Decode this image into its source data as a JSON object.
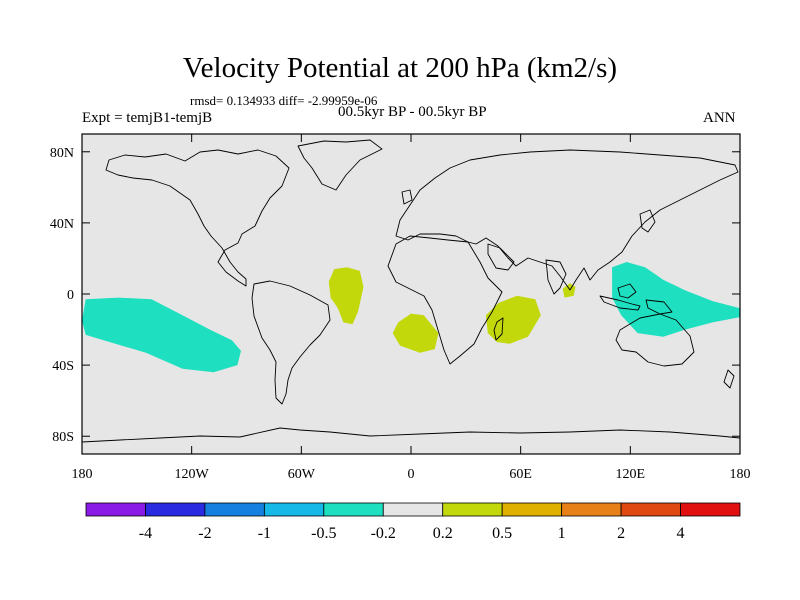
{
  "chart_data": {
    "type": "map-contour",
    "title": "Velocity Potential at 200 hPa (km2/s)",
    "stats": "rmsd= 0.134933 diff= -2.99959e-06",
    "experiment": "Expt = temjB1-temjB",
    "period": "00.5kyr BP - 00.5kyr BP",
    "season": "ANN",
    "lon_range": [
      -180,
      180
    ],
    "lat_range": [
      -90,
      90
    ],
    "x_ticks": [
      {
        "value": -180,
        "label": "180"
      },
      {
        "value": -120,
        "label": "120W"
      },
      {
        "value": -60,
        "label": "60W"
      },
      {
        "value": 0,
        "label": "0"
      },
      {
        "value": 60,
        "label": "60E"
      },
      {
        "value": 120,
        "label": "120E"
      },
      {
        "value": 180,
        "label": "180"
      }
    ],
    "y_ticks": [
      {
        "value": 80,
        "label": "80N"
      },
      {
        "value": 40,
        "label": "40N"
      },
      {
        "value": 0,
        "label": "0"
      },
      {
        "value": -40,
        "label": "40S"
      },
      {
        "value": -80,
        "label": "80S"
      }
    ],
    "colorbar": {
      "levels": [
        "-4",
        "-2",
        "-1",
        "-0.5",
        "-0.2",
        "0.2",
        "0.5",
        "1",
        "2",
        "4"
      ],
      "colors": [
        "#8a1ae6",
        "#2a2ae0",
        "#1580e0",
        "#16b8e8",
        "#1ee0c0",
        "#e6e6e6",
        "#c2d80a",
        "#e0b000",
        "#e88018",
        "#e04a10",
        "#e01010"
      ]
    },
    "regions": [
      {
        "name": "central-pacific-negative",
        "sign": "negative",
        "level_range": [
          "-0.5",
          "-0.2"
        ],
        "color": "#1ee0c0",
        "outline": [
          [
            -178,
            -3
          ],
          [
            -160,
            -2
          ],
          [
            -142,
            -3
          ],
          [
            -125,
            -12
          ],
          [
            -110,
            -20
          ],
          [
            -98,
            -26
          ],
          [
            -93,
            -32
          ],
          [
            -95,
            -40
          ],
          [
            -108,
            -44
          ],
          [
            -125,
            -42
          ],
          [
            -145,
            -33
          ],
          [
            -165,
            -27
          ],
          [
            -178,
            -23
          ],
          [
            -180,
            -15
          ]
        ]
      },
      {
        "name": "indo-pacific-negative",
        "sign": "negative",
        "level_range": [
          "-0.5",
          "-0.2"
        ],
        "color": "#1ee0c0",
        "outline": [
          [
            110,
            15
          ],
          [
            118,
            18
          ],
          [
            128,
            15
          ],
          [
            138,
            8
          ],
          [
            150,
            2
          ],
          [
            165,
            -4
          ],
          [
            180,
            -8
          ],
          [
            180,
            -13
          ],
          [
            165,
            -16
          ],
          [
            150,
            -20
          ],
          [
            138,
            -24
          ],
          [
            124,
            -22
          ],
          [
            115,
            -12
          ],
          [
            110,
            -2
          ]
        ]
      },
      {
        "name": "south-america-positive",
        "sign": "positive",
        "level_range": [
          "0.2",
          "0.5"
        ],
        "color": "#c2d80a",
        "outline": [
          [
            -42,
            14
          ],
          [
            -35,
            15
          ],
          [
            -28,
            13
          ],
          [
            -26,
            4
          ],
          [
            -29,
            -10
          ],
          [
            -32,
            -17
          ],
          [
            -37,
            -16
          ],
          [
            -40,
            -8
          ],
          [
            -44,
            -2
          ],
          [
            -45,
            7
          ]
        ]
      },
      {
        "name": "south-atlantic-positive",
        "sign": "positive",
        "level_range": [
          "0.2",
          "0.5"
        ],
        "color": "#c2d80a",
        "outline": [
          [
            -7,
            -16
          ],
          [
            0,
            -11
          ],
          [
            7,
            -12
          ],
          [
            15,
            -22
          ],
          [
            13,
            -31
          ],
          [
            5,
            -33
          ],
          [
            -6,
            -29
          ],
          [
            -10,
            -22
          ]
        ]
      },
      {
        "name": "indian-ocean-positive",
        "sign": "positive",
        "level_range": [
          "0.2",
          "0.5"
        ],
        "color": "#c2d80a",
        "outline": [
          [
            48,
            -5
          ],
          [
            58,
            -1
          ],
          [
            68,
            -3
          ],
          [
            71,
            -12
          ],
          [
            64,
            -24
          ],
          [
            54,
            -28
          ],
          [
            47,
            -27
          ],
          [
            42,
            -22
          ],
          [
            41,
            -12
          ]
        ]
      },
      {
        "name": "bay-of-bengal-positive",
        "sign": "positive",
        "level_range": [
          "0.2",
          "0.5"
        ],
        "color": "#c2d80a",
        "outline": [
          [
            83,
            3
          ],
          [
            87,
            6
          ],
          [
            90,
            4
          ],
          [
            89,
            -1
          ],
          [
            84,
            -2
          ]
        ]
      }
    ]
  }
}
